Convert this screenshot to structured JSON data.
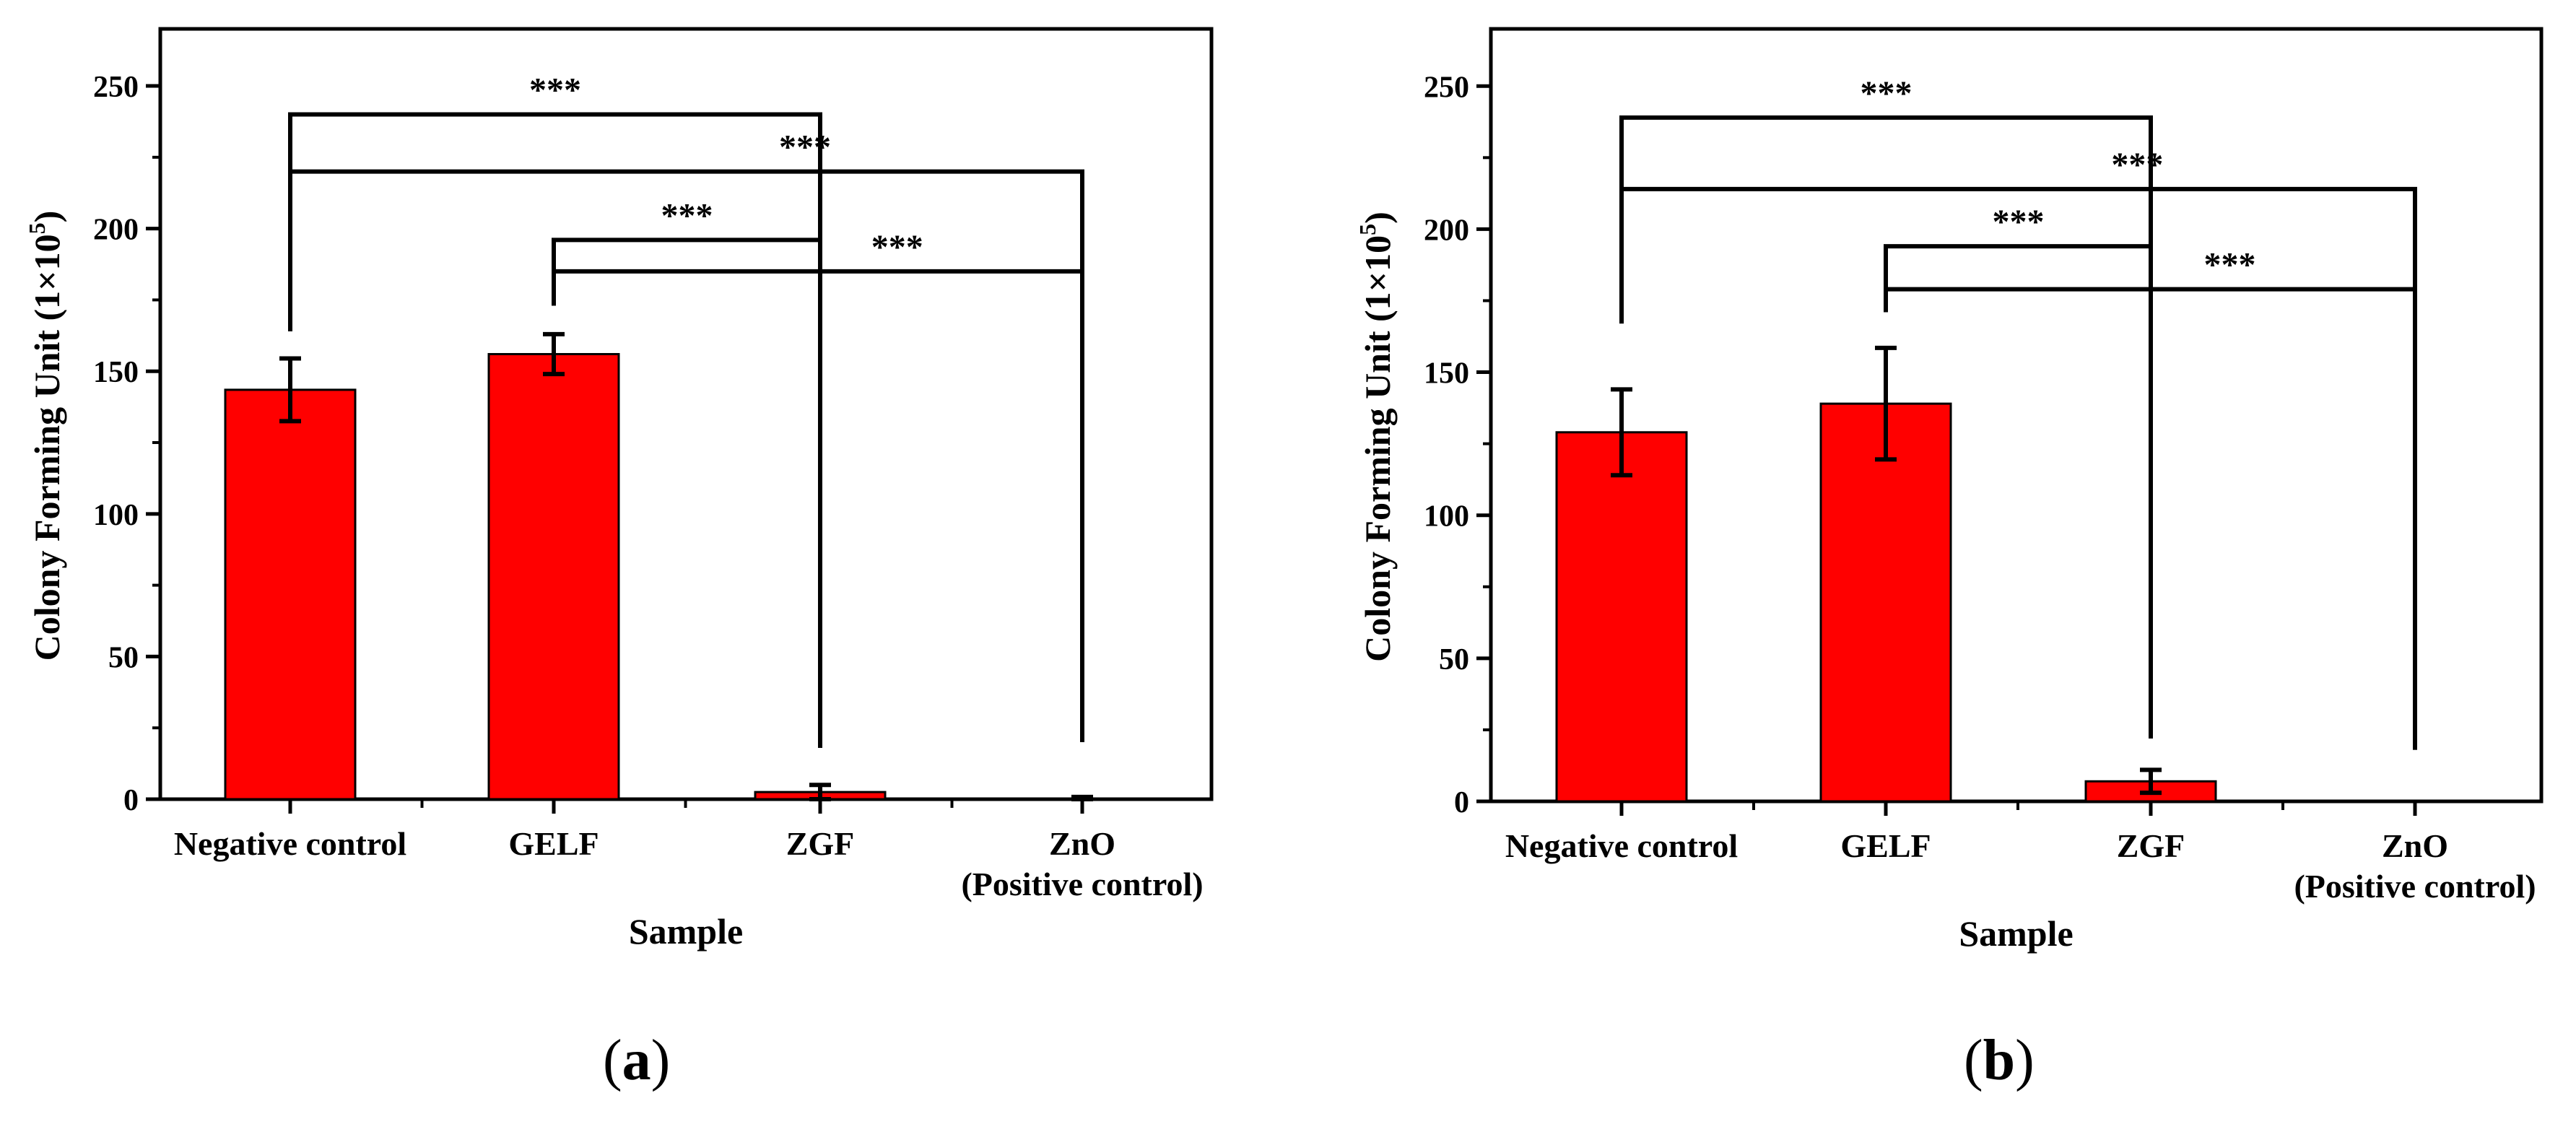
{
  "chart_data": [
    {
      "type": "bar",
      "panel": "(a)",
      "panel_prefix": "(",
      "panel_letter": "a",
      "panel_suffix": ")",
      "categories": [
        "Negative control",
        "GELF",
        "ZGF",
        "ZnO"
      ],
      "category_sublabels": [
        "",
        "",
        "",
        "(Positive control)"
      ],
      "values": [
        143.5,
        156,
        2.5,
        0
      ],
      "errors": [
        11,
        7,
        2.5,
        0.8
      ],
      "xlabel": "Sample",
      "ylabel_main": "Colony Forming Unit (1×10",
      "ylabel_sup": "5",
      "ylabel_close": ")",
      "ylim": [
        0,
        270
      ],
      "yticks": [
        0,
        50,
        100,
        150,
        200,
        250
      ],
      "bar_color": "#ff0000",
      "significance": [
        {
          "from": 0,
          "to": 2,
          "label": "***",
          "y": 240,
          "left_drop_to": 164,
          "right_drop_to": 18
        },
        {
          "from": 0,
          "to": 3,
          "label": "***",
          "y": 220,
          "left_drop_to": 164,
          "right_drop_to": 20
        },
        {
          "from": 1,
          "to": 2,
          "label": "***",
          "y": 196,
          "left_drop_to": 173,
          "right_drop_to": 18
        },
        {
          "from": 1,
          "to": 3,
          "label": "***",
          "y": 185,
          "left_drop_to": 173,
          "right_drop_to": 20
        }
      ]
    },
    {
      "type": "bar",
      "panel": "(b)",
      "panel_prefix": "(",
      "panel_letter": "b",
      "panel_suffix": ")",
      "categories": [
        "Negative control",
        "GELF",
        "ZGF",
        "ZnO"
      ],
      "category_sublabels": [
        "",
        "",
        "",
        "(Positive control)"
      ],
      "values": [
        129,
        139,
        7,
        0
      ],
      "errors": [
        15,
        19.5,
        4,
        0
      ],
      "xlabel": "Sample",
      "ylabel_main": "Colony Forming Unit (1×10",
      "ylabel_sup": "5",
      "ylabel_close": ")",
      "ylim": [
        0,
        270
      ],
      "yticks": [
        0,
        50,
        100,
        150,
        200,
        250
      ],
      "bar_color": "#ff0000",
      "significance": [
        {
          "from": 0,
          "to": 2,
          "label": "***",
          "y": 239,
          "left_drop_to": 167,
          "right_drop_to": 22
        },
        {
          "from": 0,
          "to": 3,
          "label": "***",
          "y": 214,
          "left_drop_to": 167,
          "right_drop_to": 18
        },
        {
          "from": 1,
          "to": 2,
          "label": "***",
          "y": 194,
          "left_drop_to": 171,
          "right_drop_to": 22
        },
        {
          "from": 1,
          "to": 3,
          "label": "***",
          "y": 179,
          "left_drop_to": 171,
          "right_drop_to": 18
        }
      ]
    }
  ]
}
